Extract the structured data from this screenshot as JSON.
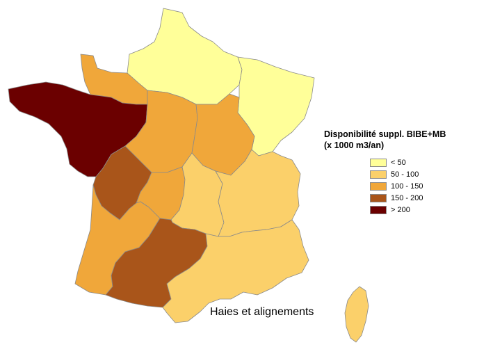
{
  "legend": {
    "title_line1": "Disponibilité suppl. BIBE+MB",
    "title_line2": "(x 1000 m3/an)",
    "items": [
      {
        "label": "< 50",
        "color": "#ffff99"
      },
      {
        "label": "50 - 100",
        "color": "#fbd06a"
      },
      {
        "label": "100 - 150",
        "color": "#f0a73a"
      },
      {
        "label": "150 - 200",
        "color": "#a9551a"
      },
      {
        "label": "> 200",
        "color": "#6b0000"
      }
    ]
  },
  "caption": "Haies et alignements",
  "regions": [
    {
      "name": "nord-picardie-idf",
      "class": "< 50"
    },
    {
      "name": "nord-est",
      "class": "< 50"
    },
    {
      "name": "normandie",
      "class": "100 - 150"
    },
    {
      "name": "bretagne-pays-de-loire",
      "class": "> 200"
    },
    {
      "name": "centre",
      "class": "100 - 150"
    },
    {
      "name": "bourgogne",
      "class": "100 - 150"
    },
    {
      "name": "poitou-charentes",
      "class": "150 - 200"
    },
    {
      "name": "limousin",
      "class": "100 - 150"
    },
    {
      "name": "auvergne",
      "class": "50 - 100"
    },
    {
      "name": "rhone-alpes",
      "class": "50 - 100"
    },
    {
      "name": "aquitaine",
      "class": "100 - 150"
    },
    {
      "name": "midi-pyrenees",
      "class": "150 - 200"
    },
    {
      "name": "languedoc-paca",
      "class": "50 - 100"
    },
    {
      "name": "corse",
      "class": "50 - 100"
    }
  ]
}
